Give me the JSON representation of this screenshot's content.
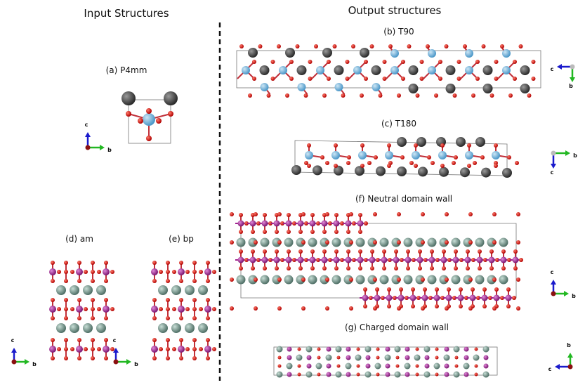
{
  "titles": {
    "input": "Input Structures",
    "output": "Output structures"
  },
  "panels": [
    {
      "label": "(a) P4mm"
    },
    {
      "label": "(b) T90"
    },
    {
      "label": "(c) T180"
    },
    {
      "label": "(d) am"
    },
    {
      "label": "(e) bp"
    },
    {
      "label": "(f) Neutral domain wall"
    },
    {
      "label": "(g) Charged domain wall"
    }
  ],
  "axes": [
    {
      "labels": [
        "c",
        "b"
      ]
    },
    {
      "labels": [
        "c",
        "b"
      ]
    },
    {
      "labels": [
        "c",
        "b"
      ]
    },
    {
      "labels": [
        "c",
        "b"
      ]
    },
    {
      "labels": [
        "c",
        "b"
      ]
    },
    {
      "labels": [
        "c",
        "b"
      ]
    },
    {
      "labels": [
        "b",
        "c"
      ]
    }
  ]
}
